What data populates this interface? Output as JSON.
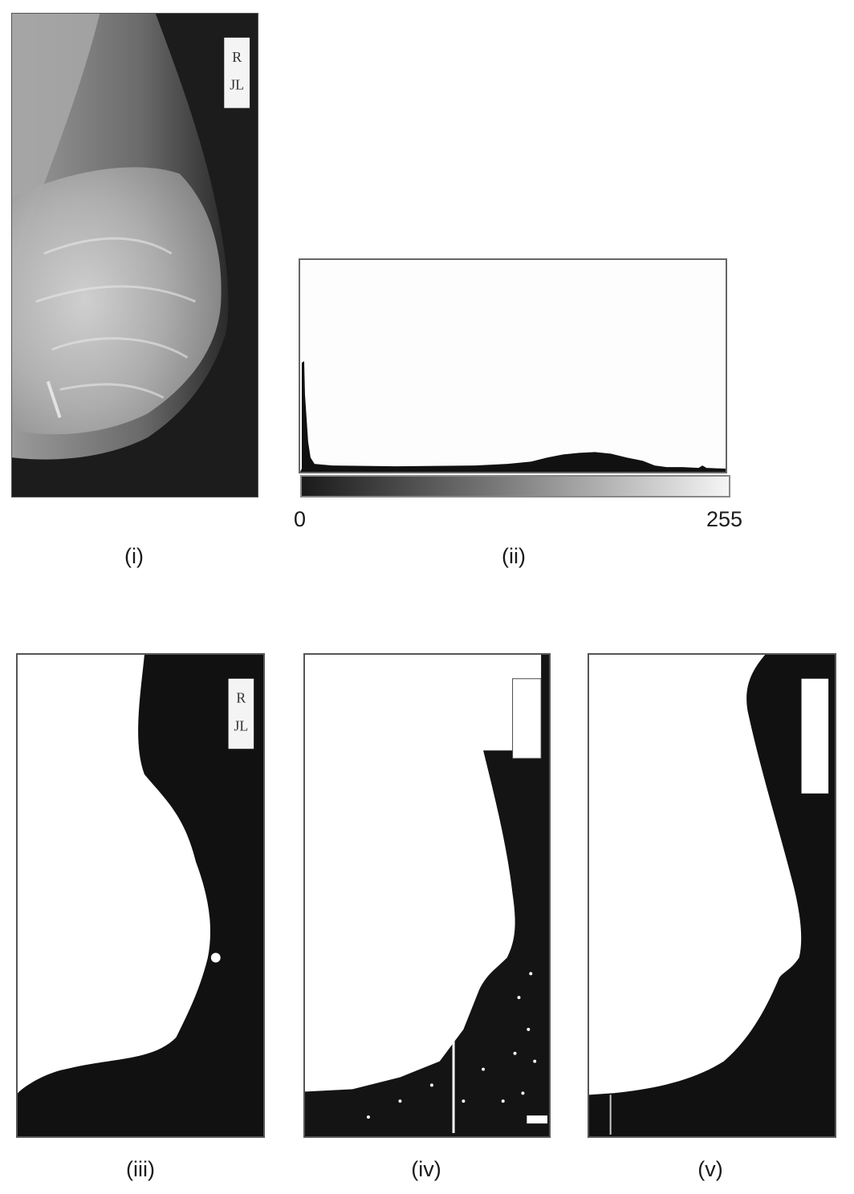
{
  "captions": {
    "i": "(i)",
    "ii": "(ii)",
    "iii": "(iii)",
    "iv": "(iv)",
    "v": "(v)"
  },
  "histogram": {
    "x_min_label": "0",
    "x_max_label": "255"
  },
  "marker_label_lines": [
    "R",
    "JL"
  ],
  "colors": {
    "background": "#ffffff",
    "frame": "#555555",
    "foreground": "#111111"
  }
}
